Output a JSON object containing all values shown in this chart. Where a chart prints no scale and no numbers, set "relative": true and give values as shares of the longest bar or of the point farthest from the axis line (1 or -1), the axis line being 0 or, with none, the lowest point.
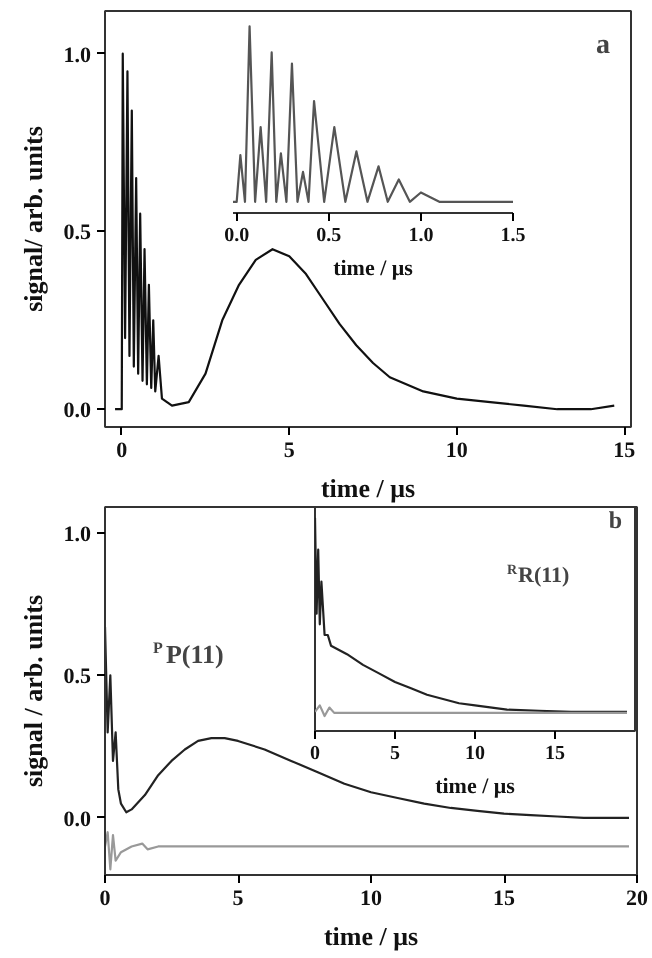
{
  "chart_data": [
    {
      "type": "line",
      "xlabel": "time / μs",
      "ylabel": "signal/ arb. units",
      "xlim": [
        -0.5,
        15.2
      ],
      "ylim": [
        -0.05,
        1.12
      ],
      "xticks": [
        0,
        5,
        10,
        15
      ],
      "yticks": [
        {
          "value": 0,
          "label": "0.0"
        },
        {
          "value": 0.5,
          "label": "0.5"
        },
        {
          "value": 1,
          "label": "1.0"
        }
      ],
      "annotations": [
        "a"
      ],
      "series": [
        {
          "color": "#111111",
          "x": [
            -0.2,
            0.0,
            0.03,
            0.1,
            0.17,
            0.23,
            0.3,
            0.36,
            0.43,
            0.49,
            0.55,
            0.62,
            0.68,
            0.75,
            0.81,
            0.88,
            0.94,
            1.0,
            1.1,
            1.2,
            1.5,
            2.0,
            2.5,
            3.0,
            3.5,
            4.0,
            4.5,
            5.0,
            5.5,
            6.0,
            6.5,
            7.0,
            7.5,
            8.0,
            9.0,
            10.0,
            11.0,
            12.0,
            13.0,
            14.0,
            14.7
          ],
          "values": [
            0.0,
            0.0,
            1.0,
            0.2,
            0.95,
            0.15,
            0.84,
            0.12,
            0.65,
            0.1,
            0.55,
            0.08,
            0.45,
            0.07,
            0.35,
            0.06,
            0.25,
            0.05,
            0.15,
            0.03,
            0.01,
            0.02,
            0.1,
            0.25,
            0.35,
            0.42,
            0.45,
            0.43,
            0.38,
            0.31,
            0.24,
            0.18,
            0.13,
            0.09,
            0.05,
            0.03,
            0.02,
            0.01,
            0.0,
            0.0,
            0.01
          ]
        }
      ]
    },
    {
      "type": "line",
      "xlabel": "time / μs",
      "relative": true,
      "tick_labels": "x",
      "xlim": [
        -0.02,
        1.5
      ],
      "xticks": [
        {
          "value": 0,
          "label": "0.0"
        },
        0.5,
        {
          "value": 1,
          "label": "1.0"
        },
        1.5
      ],
      "series": [
        {
          "color": "#555555",
          "x": [
            -0.02,
            0.0,
            0.02,
            0.045,
            0.07,
            0.1,
            0.13,
            0.16,
            0.19,
            0.215,
            0.24,
            0.27,
            0.3,
            0.33,
            0.36,
            0.39,
            0.42,
            0.475,
            0.53,
            0.59,
            0.65,
            0.71,
            0.77,
            0.82,
            0.88,
            0.94,
            1.0,
            1.1,
            1.5
          ],
          "values": [
            0.06,
            0.06,
            0.31,
            0.06,
            1.0,
            0.06,
            0.46,
            0.06,
            0.86,
            0.06,
            0.32,
            0.06,
            0.8,
            0.06,
            0.22,
            0.06,
            0.6,
            0.06,
            0.46,
            0.06,
            0.33,
            0.06,
            0.25,
            0.06,
            0.18,
            0.06,
            0.11,
            0.06,
            0.06
          ]
        }
      ]
    },
    {
      "type": "line",
      "xlabel": "time / μs",
      "ylabel": "signal / arb. units",
      "xlim": [
        0,
        20
      ],
      "ylim": [
        -0.2,
        1.09
      ],
      "xticks": [
        0,
        5,
        10,
        15,
        20
      ],
      "yticks": [
        {
          "value": 0,
          "label": "0.0"
        },
        {
          "value": 0.5,
          "label": "0.5"
        },
        {
          "value": 1,
          "label": "1.0"
        }
      ],
      "annotations": [
        "$^{P}$P(11)"
      ],
      "series": [
        {
          "color": "#222222",
          "x": [
            0,
            0.1,
            0.2,
            0.3,
            0.4,
            0.5,
            0.6,
            0.8,
            1.0,
            1.5,
            2,
            2.5,
            3,
            3.5,
            4,
            4.5,
            5,
            6,
            7,
            8,
            9,
            10,
            11,
            12,
            13,
            14,
            15,
            16,
            17,
            18,
            19.7
          ],
          "values": [
            0.67,
            0.3,
            0.5,
            0.2,
            0.3,
            0.1,
            0.05,
            0.02,
            0.03,
            0.08,
            0.15,
            0.2,
            0.24,
            0.27,
            0.28,
            0.28,
            0.27,
            0.24,
            0.2,
            0.16,
            0.12,
            0.09,
            0.07,
            0.05,
            0.035,
            0.025,
            0.015,
            0.01,
            0.005,
            0.0,
            0.0
          ]
        },
        {
          "color": "#999999",
          "x": [
            0,
            0.1,
            0.2,
            0.3,
            0.4,
            0.6,
            1.0,
            1.4,
            1.6,
            2,
            19.7
          ],
          "values": [
            -0.1,
            -0.05,
            -0.18,
            -0.06,
            -0.15,
            -0.12,
            -0.1,
            -0.09,
            -0.11,
            -0.1,
            -0.1
          ]
        }
      ]
    },
    {
      "type": "line",
      "xlabel": "time / μs",
      "relative": true,
      "tick_labels": "x",
      "xlim": [
        0,
        20
      ],
      "xticks": [
        0,
        5,
        10,
        15
      ],
      "annotations": [
        "b",
        "$^{R}$R(11)"
      ],
      "series": [
        {
          "color": "#222222",
          "x": [
            0,
            0.1,
            0.2,
            0.3,
            0.4,
            0.6,
            0.8,
            1,
            2,
            3,
            4,
            5,
            6,
            7,
            8,
            9,
            10,
            12,
            14,
            16,
            19.5
          ],
          "values": [
            1.0,
            0.55,
            0.85,
            0.5,
            0.7,
            0.45,
            0.45,
            0.4,
            0.36,
            0.31,
            0.27,
            0.23,
            0.2,
            0.17,
            0.15,
            0.13,
            0.12,
            0.1,
            0.095,
            0.09,
            0.09
          ]
        },
        {
          "color": "#999999",
          "x": [
            0,
            0.3,
            0.6,
            0.9,
            1.2,
            19.5
          ],
          "values": [
            0.09,
            0.12,
            0.07,
            0.11,
            0.085,
            0.085
          ]
        }
      ]
    }
  ]
}
